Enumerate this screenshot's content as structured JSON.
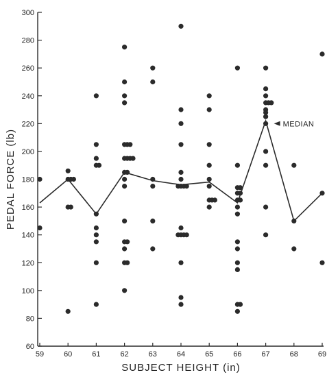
{
  "chart_data": {
    "type": "scatter",
    "xlabel": "SUBJECT HEIGHT (in)",
    "ylabel": "PEDAL FORCE (lb)",
    "xlim": [
      59,
      69
    ],
    "ylim": [
      60,
      300
    ],
    "xticks": [
      59,
      60,
      61,
      62,
      63,
      64,
      65,
      66,
      67,
      68,
      69
    ],
    "yticks": [
      60,
      80,
      100,
      120,
      140,
      160,
      180,
      200,
      220,
      240,
      260,
      280,
      300
    ],
    "grid": false,
    "colors": {
      "points": "#2b2b2b",
      "median_line": "#2b2b2b",
      "axis": "#2b2b2b"
    },
    "series": [
      {
        "name": "subjects",
        "points": [
          [
            59,
            180
          ],
          [
            59,
            145
          ],
          [
            60,
            186
          ],
          [
            60,
            180
          ],
          [
            60.1,
            180
          ],
          [
            60.2,
            180
          ],
          [
            60,
            160
          ],
          [
            60.1,
            160
          ],
          [
            60,
            85
          ],
          [
            61,
            240
          ],
          [
            61,
            205
          ],
          [
            61,
            195
          ],
          [
            61,
            190
          ],
          [
            61.1,
            190
          ],
          [
            61,
            155
          ],
          [
            61,
            145
          ],
          [
            61,
            140
          ],
          [
            61,
            135
          ],
          [
            61,
            120
          ],
          [
            61,
            90
          ],
          [
            62,
            275
          ],
          [
            62,
            250
          ],
          [
            62,
            240
          ],
          [
            62,
            235
          ],
          [
            62,
            205
          ],
          [
            62.1,
            205
          ],
          [
            62.2,
            205
          ],
          [
            62,
            195
          ],
          [
            62.1,
            195
          ],
          [
            62.2,
            195
          ],
          [
            62.3,
            195
          ],
          [
            62,
            185
          ],
          [
            62.1,
            185
          ],
          [
            62,
            180
          ],
          [
            62,
            175
          ],
          [
            62,
            150
          ],
          [
            62,
            135
          ],
          [
            62.1,
            135
          ],
          [
            62,
            130
          ],
          [
            62,
            120
          ],
          [
            62.1,
            120
          ],
          [
            62,
            100
          ],
          [
            63,
            260
          ],
          [
            63,
            250
          ],
          [
            63,
            180
          ],
          [
            63,
            175
          ],
          [
            63,
            150
          ],
          [
            63,
            130
          ],
          [
            64,
            290
          ],
          [
            64,
            230
          ],
          [
            64,
            220
          ],
          [
            64,
            205
          ],
          [
            64,
            185
          ],
          [
            64,
            180
          ],
          [
            64,
            175
          ],
          [
            64.1,
            175
          ],
          [
            64.2,
            175
          ],
          [
            63.9,
            175
          ],
          [
            64,
            145
          ],
          [
            64,
            140
          ],
          [
            64.1,
            140
          ],
          [
            63.9,
            140
          ],
          [
            64.2,
            140
          ],
          [
            64,
            120
          ],
          [
            64,
            95
          ],
          [
            64,
            90
          ],
          [
            65,
            240
          ],
          [
            65,
            230
          ],
          [
            65,
            205
          ],
          [
            65,
            190
          ],
          [
            65,
            180
          ],
          [
            65,
            175
          ],
          [
            65,
            165
          ],
          [
            65.1,
            165
          ],
          [
            65.2,
            165
          ],
          [
            65,
            160
          ],
          [
            66,
            260
          ],
          [
            66,
            190
          ],
          [
            66,
            174
          ],
          [
            66.1,
            174
          ],
          [
            66,
            170
          ],
          [
            66.1,
            170
          ],
          [
            66,
            165
          ],
          [
            66.1,
            165
          ],
          [
            66,
            160
          ],
          [
            66,
            155
          ],
          [
            66,
            135
          ],
          [
            66,
            130
          ],
          [
            66,
            120
          ],
          [
            66,
            115
          ],
          [
            66,
            90
          ],
          [
            66.1,
            90
          ],
          [
            66,
            85
          ],
          [
            67,
            260
          ],
          [
            67,
            245
          ],
          [
            67,
            240
          ],
          [
            67,
            235
          ],
          [
            67.1,
            235
          ],
          [
            67.2,
            235
          ],
          [
            67,
            230
          ],
          [
            67,
            228
          ],
          [
            67,
            225
          ],
          [
            67,
            220
          ],
          [
            67,
            200
          ],
          [
            67,
            190
          ],
          [
            67,
            160
          ],
          [
            67,
            140
          ],
          [
            68,
            190
          ],
          [
            68,
            150
          ],
          [
            68,
            130
          ],
          [
            69,
            270
          ],
          [
            69,
            170
          ],
          [
            69,
            120
          ]
        ]
      },
      {
        "name": "median",
        "points": [
          [
            59,
            163
          ],
          [
            60,
            180
          ],
          [
            61,
            155
          ],
          [
            62,
            185
          ],
          [
            63,
            179
          ],
          [
            64,
            176
          ],
          [
            65,
            178
          ],
          [
            66,
            163
          ],
          [
            67,
            222
          ],
          [
            68,
            150
          ],
          [
            69,
            170
          ]
        ]
      }
    ],
    "annotations": [
      {
        "text": "MEDIAN",
        "x": 67,
        "y": 222
      }
    ]
  }
}
